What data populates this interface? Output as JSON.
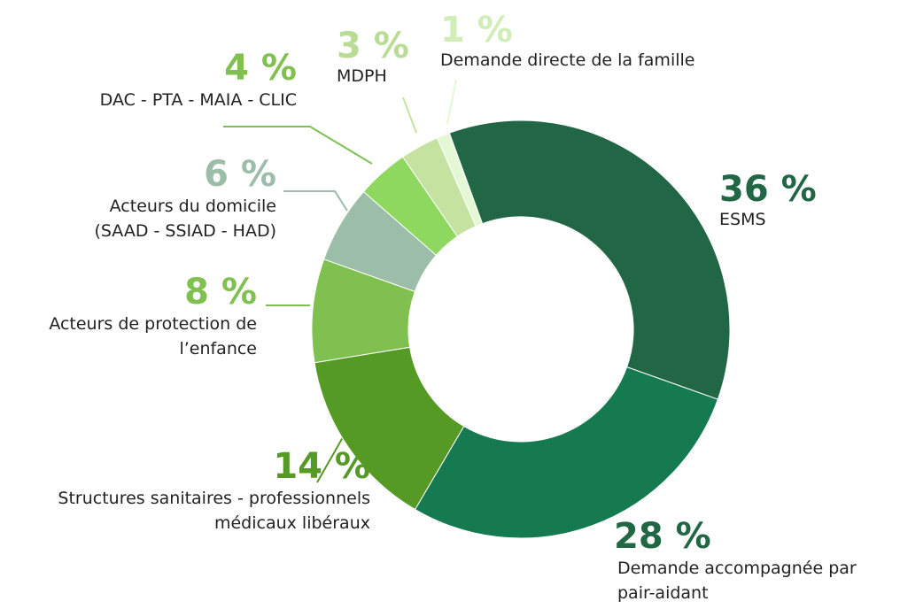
{
  "chart_data": {
    "type": "donut",
    "categories": [
      "ESMS",
      "Demande accompagnée par pair-aidant",
      "Structures sanitaires - professionnels médicaux libéraux",
      "Acteurs de protection de l’enfance",
      "Acteurs du domicile (SAAD - SSIAD - HAD)",
      "DAC - PTA - MAIA - CLIC",
      "MDPH",
      "Demande directe de la famille"
    ],
    "values": [
      36,
      28,
      14,
      8,
      6,
      4,
      3,
      1
    ],
    "value_labels": [
      "36 %",
      "28 %",
      "14 %",
      "8 %",
      "6 %",
      "4 %",
      "3 %",
      "1 %"
    ],
    "colors": [
      "#216645",
      "#167a50",
      "#559a25",
      "#80c050",
      "#9cbea8",
      "#8ed860",
      "#c5e2a0",
      "#e5f8d5"
    ],
    "label_colors": [
      "#216645",
      "#216645",
      "#559a25",
      "#80c050",
      "#9cbea8",
      "#80c050",
      "#b8dc94",
      "#d0eeb8"
    ]
  }
}
